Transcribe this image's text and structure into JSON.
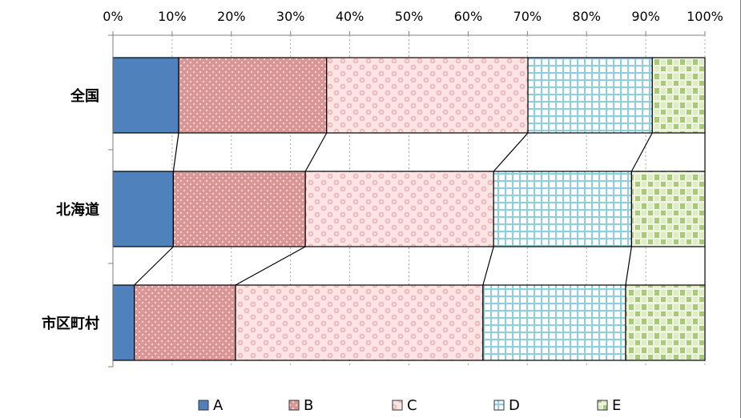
{
  "chart_data": {
    "type": "bar",
    "orientation": "horizontal",
    "stacked": "percent",
    "categories": [
      "全国",
      "北海道",
      "市区町村"
    ],
    "series": [
      {
        "name": "A",
        "values": [
          11.1,
          10.2,
          3.6
        ]
      },
      {
        "name": "B",
        "values": [
          25.0,
          22.3,
          17.1
        ]
      },
      {
        "name": "C",
        "values": [
          34.0,
          31.8,
          41.8
        ]
      },
      {
        "name": "D",
        "values": [
          21.0,
          23.3,
          24.1
        ]
      },
      {
        "name": "E",
        "values": [
          8.9,
          12.4,
          13.4
        ]
      }
    ],
    "xlim": [
      0,
      100
    ],
    "x_ticks": [
      "0%",
      "10%",
      "20%",
      "30%",
      "40%",
      "50%",
      "60%",
      "70%",
      "80%",
      "90%",
      "100%"
    ],
    "x_axis_position": "top",
    "grid": true,
    "series_connector_lines": true,
    "legend": {
      "position": "bottom",
      "entries": [
        "A",
        "B",
        "C",
        "D",
        "E"
      ]
    },
    "colors": {
      "A": "#4f81bd",
      "B": "#d99694",
      "C": "#f2c4c4",
      "D": "#92cddc",
      "E": "#c3d69b"
    }
  }
}
